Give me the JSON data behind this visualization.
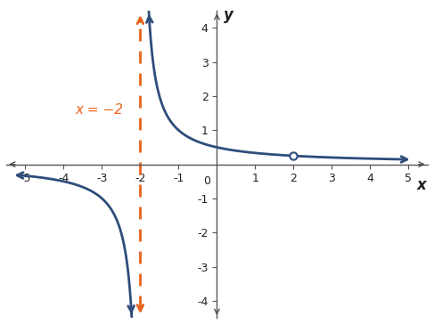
{
  "xlim": [
    -5.5,
    5.5
  ],
  "ylim": [
    -4.5,
    4.5
  ],
  "xticks": [
    -5,
    -4,
    -3,
    -2,
    -1,
    1,
    2,
    3,
    4,
    5
  ],
  "yticks": [
    -4,
    -3,
    -2,
    -1,
    1,
    2,
    3,
    4
  ],
  "xlabel": "x",
  "ylabel": "y",
  "curve_color": "#2E4D7B",
  "asymptote_color": "#E8621A",
  "asymptote_x": -2,
  "hole_x": 2,
  "hole_y": 0.25,
  "asymptote_label": "x = −2",
  "background_color": "#ffffff",
  "line_width": 2.0,
  "hole_size": 6,
  "axis_color": "#555555",
  "tick_fontsize": 9,
  "label_fontsize": 12
}
